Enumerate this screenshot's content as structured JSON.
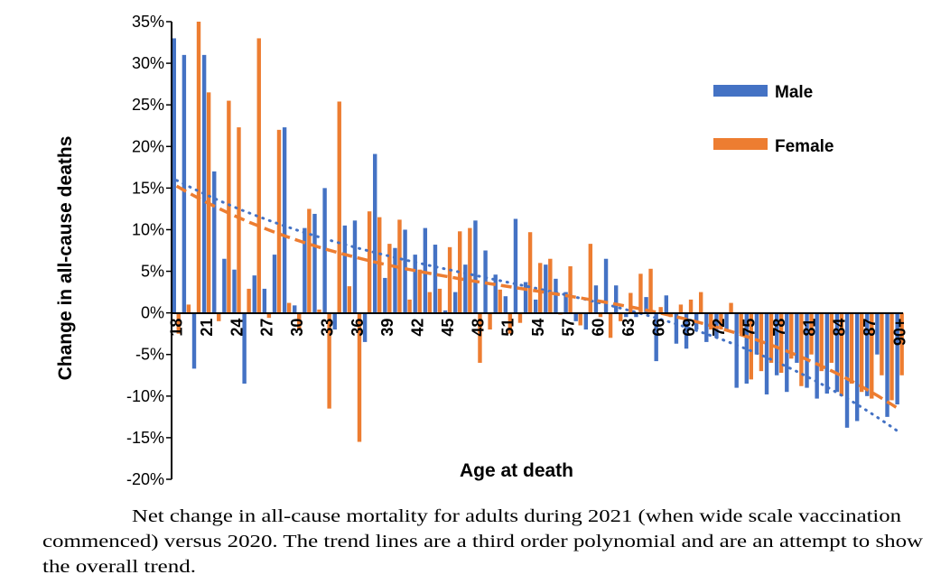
{
  "chart_data": {
    "type": "bar",
    "xlabel": "Age at death",
    "ylabel": "Change in all-cause deaths",
    "ylim": [
      -20,
      35
    ],
    "yticks": [
      35,
      30,
      25,
      20,
      15,
      10,
      5,
      0,
      -5,
      -10,
      -15,
      -20
    ],
    "ytick_format": "%",
    "categories": [
      "18",
      "19",
      "20",
      "21",
      "22",
      "23",
      "24",
      "25",
      "26",
      "27",
      "28",
      "29",
      "30",
      "31",
      "32",
      "33",
      "34",
      "35",
      "36",
      "37",
      "38",
      "39",
      "40",
      "41",
      "42",
      "43",
      "44",
      "45",
      "46",
      "47",
      "48",
      "49",
      "50",
      "51",
      "52",
      "53",
      "54",
      "55",
      "56",
      "57",
      "58",
      "59",
      "60",
      "61",
      "62",
      "63",
      "64",
      "65",
      "66",
      "67",
      "68",
      "69",
      "70",
      "71",
      "72",
      "73",
      "74",
      "75",
      "76",
      "77",
      "78",
      "79",
      "80",
      "81",
      "82",
      "83",
      "84",
      "85",
      "86",
      "87",
      "88",
      "89",
      "90+"
    ],
    "xtick_labels": [
      "18",
      "21",
      "24",
      "27",
      "30",
      "33",
      "36",
      "39",
      "42",
      "45",
      "48",
      "51",
      "54",
      "57",
      "60",
      "63",
      "66",
      "69",
      "72",
      "75",
      "78",
      "81",
      "84",
      "87",
      "90+"
    ],
    "legend_position": "top-right",
    "grid": false,
    "series": [
      {
        "name": "Male",
        "color": "#4472C4",
        "trend": "dotted",
        "values": [
          33,
          31,
          -6.7,
          31,
          17,
          6.5,
          5.2,
          -8.5,
          4.5,
          2.9,
          7,
          22.3,
          0.9,
          10.2,
          11.9,
          15,
          -2,
          10.5,
          11.1,
          -3.5,
          19.1,
          4.2,
          7.8,
          10,
          7,
          10.2,
          8.2,
          0.3,
          2.5,
          5.8,
          11.1,
          7.5,
          4.6,
          2,
          11.3,
          3.7,
          1.6,
          5.8,
          4.1,
          2.5,
          -1,
          -2,
          3.3,
          6.5,
          3.3,
          -0.5,
          -0.5,
          1.9,
          -5.8,
          2.1,
          -3.7,
          -4.3,
          -2,
          -3.5,
          -3,
          -2,
          -9,
          -8.5,
          -5,
          -9.8,
          -7.5,
          -9.5,
          -6,
          -9,
          -10.3,
          -9.7,
          -9.5,
          -13.8,
          -13,
          -10,
          -5,
          -12.5,
          -11
        ]
      },
      {
        "name": "Female",
        "color": "#ED7D31",
        "trend": "dashed",
        "values": [
          -2.5,
          1,
          35,
          26.5,
          -1,
          25.5,
          22.3,
          2.9,
          33,
          -0.6,
          22,
          1.2,
          -2,
          12.5,
          0.4,
          -11.5,
          25.4,
          3.2,
          -15.5,
          12.2,
          11.5,
          8.3,
          11.2,
          1.6,
          5.2,
          2.5,
          2.9,
          7.9,
          9.8,
          10.2,
          -6,
          -2,
          2.8,
          -2.5,
          -1.2,
          9.7,
          6,
          6.5,
          -0.2,
          5.6,
          -1.5,
          8.3,
          -0.5,
          -3,
          -1,
          2.4,
          4.7,
          5.3,
          0.7,
          -0.5,
          1,
          1.6,
          2.5,
          -2,
          -2,
          1.2,
          -2.5,
          -8,
          -7,
          -6,
          -7.2,
          -5.5,
          -8.8,
          -5,
          -7,
          -6,
          -10,
          -8.5,
          -9.5,
          -10.3,
          -7.5,
          -10.5,
          -7.5
        ]
      }
    ],
    "trend_note": "third order polynomial"
  },
  "caption_lines": [
    "Net change in all-cause mortality for adults during 2021 (when wide scale vaccination",
    "commenced) versus 2020. The trend lines are a third order polynomial and are an attempt to show",
    "the overall trend."
  ]
}
